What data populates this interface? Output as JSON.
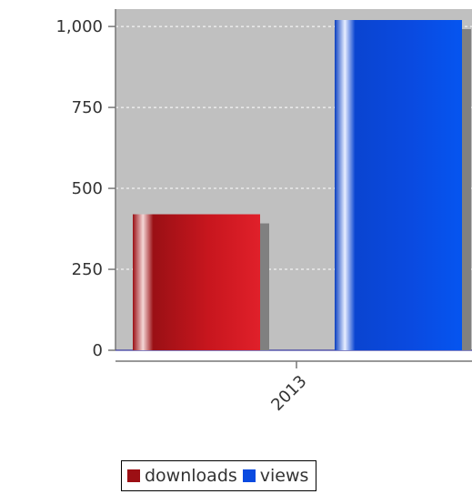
{
  "chart_data": {
    "type": "bar",
    "title": "",
    "xlabel": "",
    "ylabel": "",
    "categories": [
      "2013"
    ],
    "series": [
      {
        "name": "downloads",
        "values": [
          420
        ],
        "color": "#c0141c"
      },
      {
        "name": "views",
        "values": [
          1020
        ],
        "color": "#0a4ae0"
      }
    ],
    "ylim": [
      0,
      1020
    ],
    "yticks": [
      0,
      250,
      500,
      750,
      1000
    ],
    "ytick_labels": [
      "0",
      "250",
      "500",
      "750",
      "1,000"
    ],
    "grid": true,
    "plot_background": "#c0c0c0",
    "legend_position": "bottom"
  },
  "legend": {
    "items": [
      {
        "label": "downloads",
        "color": "#9c0f14"
      },
      {
        "label": "views",
        "color": "#0a4ae0"
      }
    ]
  }
}
